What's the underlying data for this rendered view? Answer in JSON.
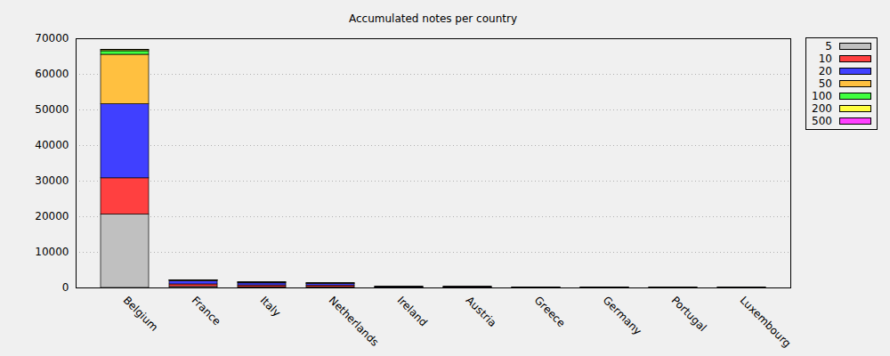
{
  "chart_data": {
    "type": "bar",
    "title": "Accumulated notes per country",
    "stacked": true,
    "grid": true,
    "legend": "upper right",
    "categories": [
      "Belgium",
      "France",
      "Italy",
      "Netherlands",
      "Ireland",
      "Austria",
      "Greece",
      "Germany",
      "Portugal",
      "Luxembourg"
    ],
    "series": [
      {
        "name": "5",
        "color": "#c0c0c0",
        "values": [
          20600,
          300,
          200,
          200,
          50,
          60,
          20,
          15,
          10,
          10
        ]
      },
      {
        "name": "10",
        "color": "#ff4040",
        "values": [
          10200,
          700,
          500,
          400,
          100,
          90,
          30,
          25,
          20,
          15
        ]
      },
      {
        "name": "20",
        "color": "#4040ff",
        "values": [
          20800,
          900,
          600,
          500,
          100,
          90,
          30,
          25,
          20,
          15
        ]
      },
      {
        "name": "50",
        "color": "#ffc040",
        "values": [
          13900,
          200,
          200,
          150,
          40,
          40,
          15,
          10,
          8,
          7
        ]
      },
      {
        "name": "100",
        "color": "#40ff40",
        "values": [
          1000,
          50,
          30,
          30,
          5,
          5,
          3,
          3,
          2,
          2
        ]
      },
      {
        "name": "200",
        "color": "#ffff40",
        "values": [
          300,
          10,
          5,
          5,
          1,
          1,
          0,
          1,
          0,
          0
        ]
      },
      {
        "name": "500",
        "color": "#ff40ff",
        "values": [
          100,
          5,
          2,
          2,
          0,
          0,
          0,
          0,
          0,
          0
        ]
      }
    ],
    "ylim": [
      0,
      70000
    ],
    "yticks": [
      0,
      10000,
      20000,
      30000,
      40000,
      50000,
      60000,
      70000
    ]
  }
}
